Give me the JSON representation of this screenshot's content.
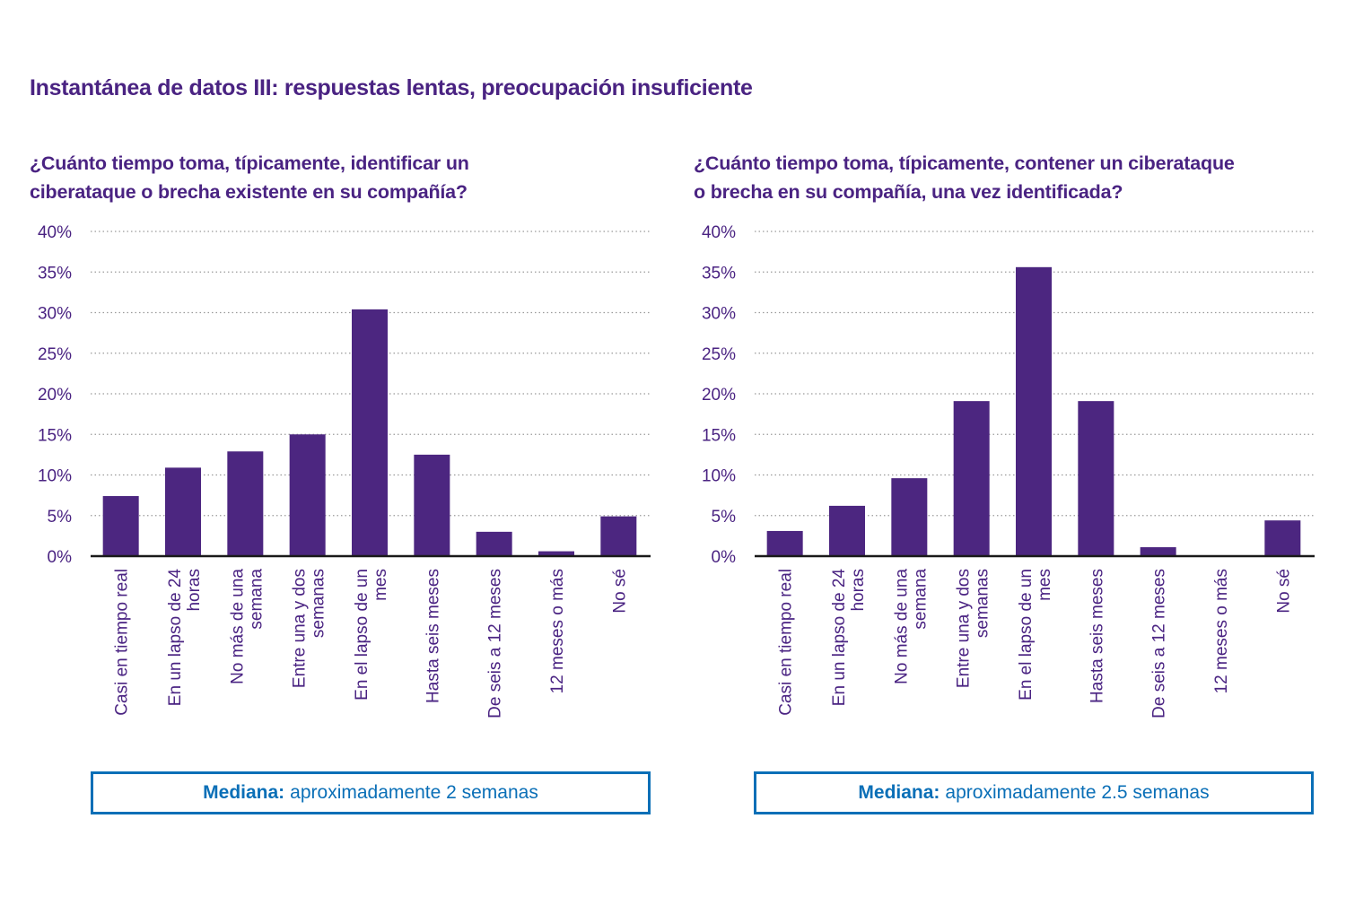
{
  "title": "Instantánea de datos III: respuestas lentas, preocupación insuficiente",
  "colors": {
    "title": "#4a2382",
    "bar": "#4c2680",
    "median": "#0a6fb7",
    "grid": "#9a9a9a",
    "axis": "#1a1a1a"
  },
  "chart_data": [
    {
      "type": "bar",
      "title": "¿Cuánto tiempo toma, típicamente, identificar un ciberataque o brecha existente en su compañía?",
      "title_lines": [
        "¿Cuánto tiempo toma, típicamente, identificar un",
        "ciberataque o brecha existente en su compañía?"
      ],
      "xlabel": "",
      "ylabel": "",
      "ylim": [
        0,
        40
      ],
      "yticks": [
        "0%",
        "5%",
        "10%",
        "15%",
        "20%",
        "25%",
        "30%",
        "35%",
        "40%"
      ],
      "grid": true,
      "categories": [
        [
          "Casi en tiempo real"
        ],
        [
          "En un lapso de 24",
          "horas"
        ],
        [
          "No más de una",
          "semana"
        ],
        [
          "Entre una y dos",
          "semanas"
        ],
        [
          "En el lapso de un",
          "mes"
        ],
        [
          "Hasta seis meses"
        ],
        [
          "De seis a 12 meses"
        ],
        [
          "12 meses o más"
        ],
        [
          "No sé"
        ]
      ],
      "values": [
        7.4,
        10.9,
        12.9,
        15.0,
        30.4,
        12.5,
        3.0,
        0.6,
        4.9
      ],
      "median": {
        "label": "Mediana:",
        "text": "aproximadamente 2 semanas"
      }
    },
    {
      "type": "bar",
      "title": "¿Cuánto tiempo toma, típicamente, contener un ciberataque o brecha en su compañía, una vez identificada?",
      "title_lines": [
        "¿Cuánto tiempo toma, típicamente, contener un ciberataque",
        "o brecha en su compañía, una vez identificada?"
      ],
      "xlabel": "",
      "ylabel": "",
      "ylim": [
        0,
        40
      ],
      "yticks": [
        "0%",
        "5%",
        "10%",
        "15%",
        "20%",
        "25%",
        "30%",
        "35%",
        "40%"
      ],
      "grid": true,
      "categories": [
        [
          "Casi en tiempo real"
        ],
        [
          "En un lapso de 24",
          "horas"
        ],
        [
          "No más de una",
          "semana"
        ],
        [
          "Entre una y dos",
          "semanas"
        ],
        [
          "En el lapso de un",
          "mes"
        ],
        [
          "Hasta seis meses"
        ],
        [
          "De seis a 12 meses"
        ],
        [
          "12 meses o más"
        ],
        [
          "No sé"
        ]
      ],
      "values": [
        3.1,
        6.2,
        9.6,
        19.1,
        35.6,
        19.1,
        1.1,
        0.0,
        4.4
      ],
      "median": {
        "label": "Mediana:",
        "text": "aproximadamente 2.5 semanas"
      }
    }
  ]
}
